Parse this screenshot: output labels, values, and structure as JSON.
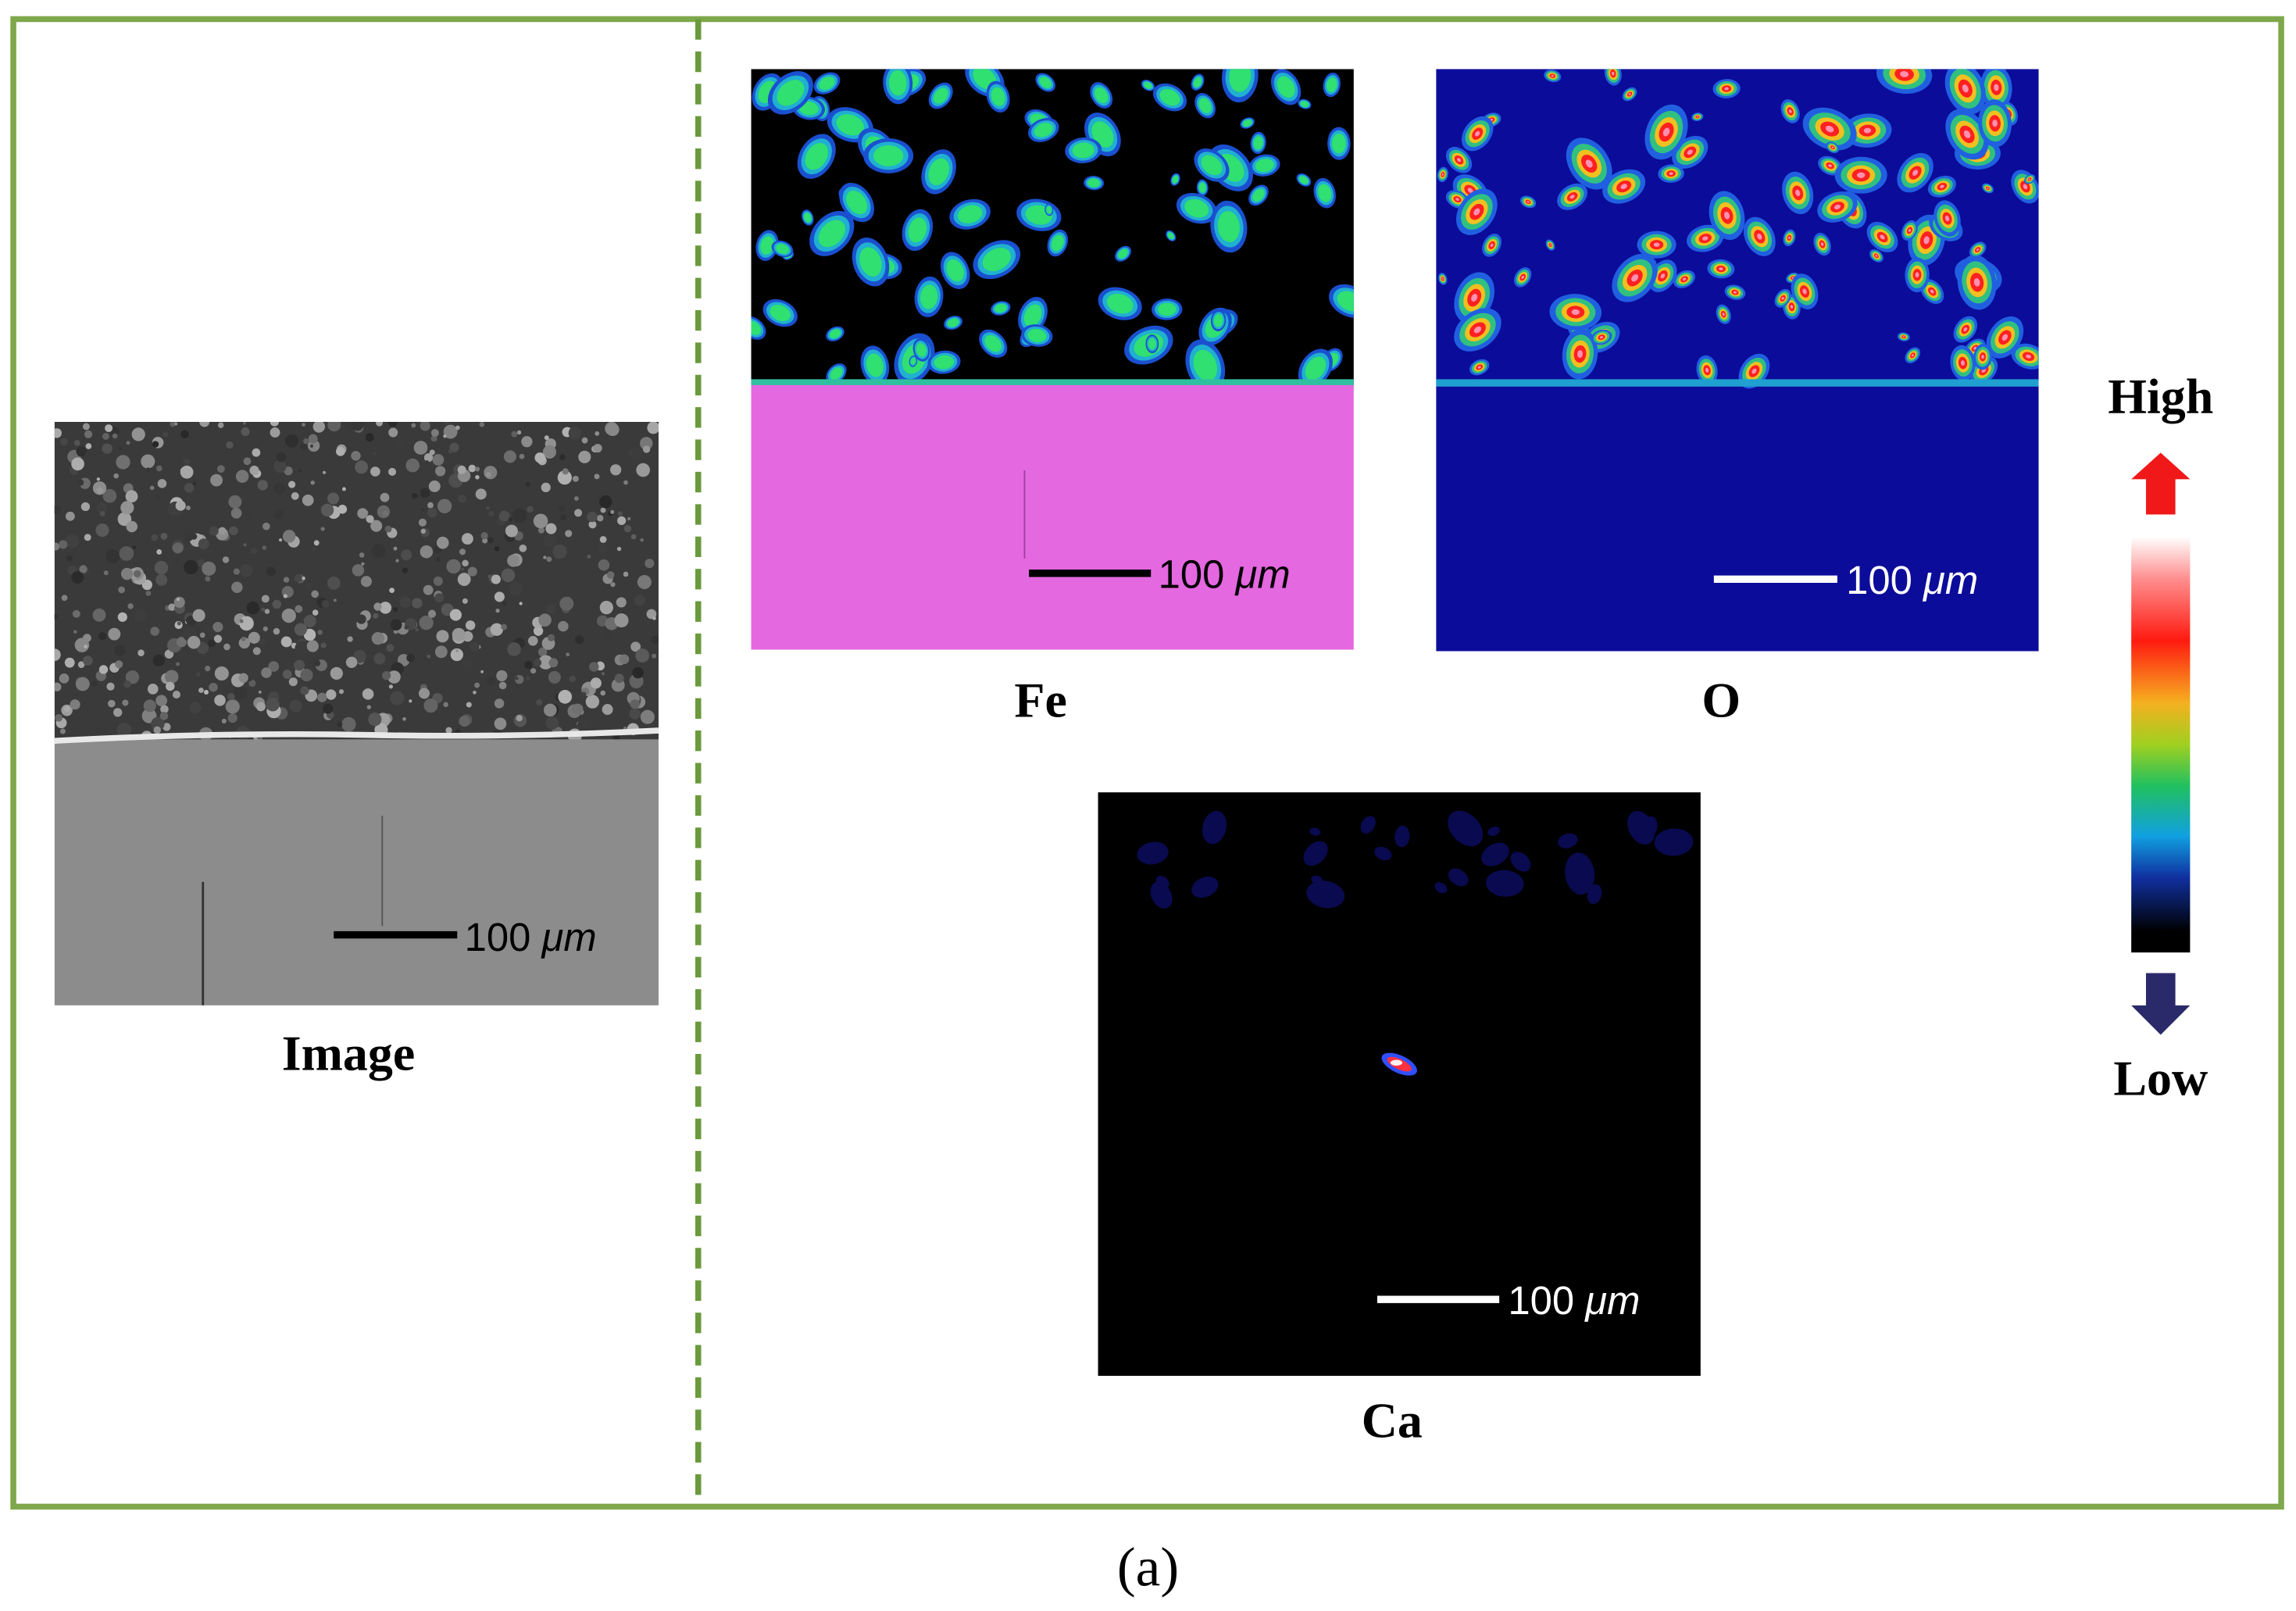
{
  "panels": [
    {
      "label": "Image",
      "scale_bar": {
        "value": "100",
        "unit": "μm"
      }
    },
    {
      "label": "Fe",
      "scale_bar": {
        "value": "100",
        "unit": "μm"
      }
    },
    {
      "label": "O",
      "scale_bar": {
        "value": "100",
        "unit": "μm"
      }
    },
    {
      "label": "Ca",
      "scale_bar": {
        "value": "100",
        "unit": "μm"
      }
    }
  ],
  "color_scale": {
    "high": "High",
    "low": "Low"
  },
  "caption": "(a)"
}
